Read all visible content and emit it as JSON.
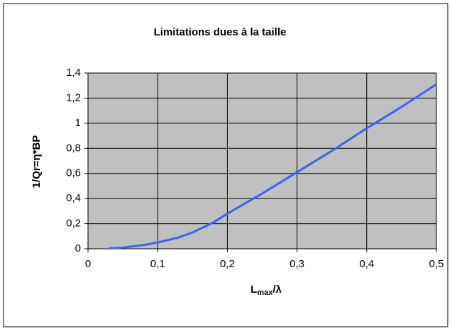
{
  "chart_data": {
    "type": "line",
    "title": "Limitations dues à la taille",
    "y_label": "1/Qr=η*BP",
    "x_label": {
      "main": "L",
      "sub": "max",
      "rest": "/λ"
    },
    "x": [
      0.03,
      0.05,
      0.08,
      0.1,
      0.13,
      0.15,
      0.18,
      0.2,
      0.25,
      0.3,
      0.35,
      0.4,
      0.45,
      0.5
    ],
    "series": [
      {
        "name": "1/Qr",
        "color": "#3d63f2",
        "values": [
          0.003,
          0.01,
          0.03,
          0.05,
          0.09,
          0.13,
          0.21,
          0.28,
          0.44,
          0.61,
          0.78,
          0.96,
          1.13,
          1.31
        ]
      }
    ],
    "xlim": [
      0,
      0.5
    ],
    "xticks": [
      0,
      {
        "value": 0.1,
        "label": "0,1"
      },
      {
        "value": 0.2,
        "label": "0,2"
      },
      {
        "value": 0.3,
        "label": "0,3"
      },
      {
        "value": 0.4,
        "label": "0,4"
      },
      {
        "value": 0.5,
        "label": "0,5"
      }
    ],
    "ylim": [
      0,
      1.4
    ],
    "yticks": [
      0,
      {
        "value": 0.2,
        "label": "0,2"
      },
      {
        "value": 0.4,
        "label": "0,4"
      },
      {
        "value": 0.6,
        "label": "0,6"
      },
      {
        "value": 0.8,
        "label": "0,8"
      },
      1,
      {
        "value": 1.2,
        "label": "1,2"
      },
      {
        "value": 1.4,
        "label": "1,4"
      }
    ],
    "grid": true
  }
}
